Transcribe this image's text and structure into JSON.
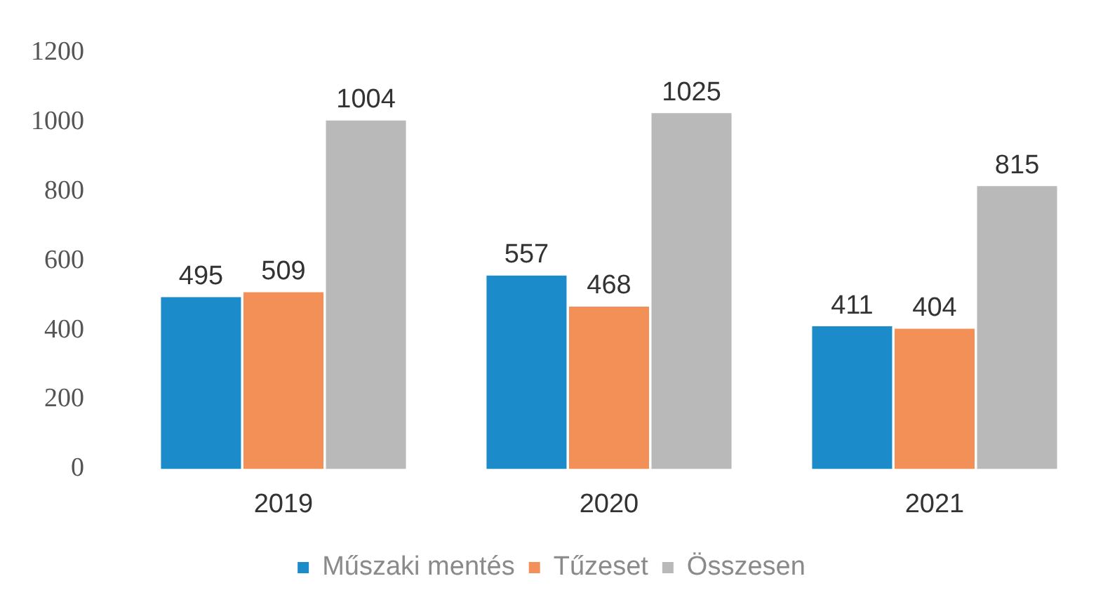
{
  "chart_data": {
    "type": "bar",
    "categories": [
      "2019",
      "2020",
      "2021"
    ],
    "series": [
      {
        "name": "Műszaki mentés",
        "color": "#1b8bc9",
        "values": [
          495,
          557,
          411
        ]
      },
      {
        "name": "Tűzeset",
        "color": "#f39057",
        "values": [
          509,
          468,
          404
        ]
      },
      {
        "name": "Összesen",
        "color": "#b9b9b9",
        "values": [
          1004,
          1025,
          815
        ]
      }
    ],
    "ylim": [
      0,
      1200
    ],
    "yticks": [
      0,
      200,
      400,
      600,
      800,
      1000,
      1200
    ],
    "legend": "bottom",
    "data_labels": true
  }
}
